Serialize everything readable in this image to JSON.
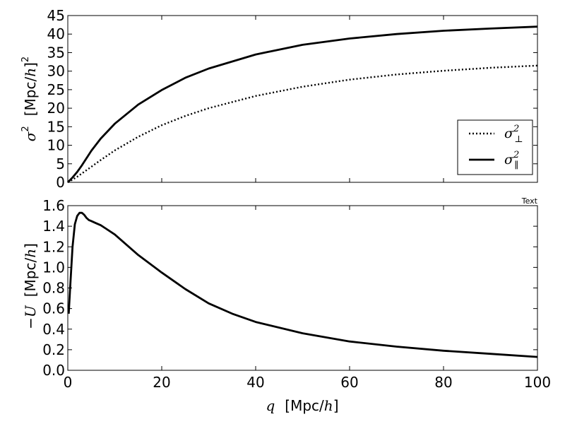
{
  "chart_data": [
    {
      "type": "line",
      "panel": "top",
      "ylabel_symbol": "σ",
      "ylabel_superscript": "2",
      "ylabel_units": "[Mpc/",
      "ylabel_units_h": "h",
      "ylabel_units_close": "]",
      "ylabel_units_superscript": "2",
      "xlim": [
        0,
        100
      ],
      "ylim": [
        0,
        45
      ],
      "yticks": [
        0,
        5,
        10,
        15,
        20,
        25,
        30,
        35,
        40,
        45
      ],
      "show_xticklabels": false,
      "legend_position": "lower-right",
      "series": [
        {
          "name": "σ⊥²",
          "legend_symbol": "σ",
          "legend_sub": "⊥",
          "legend_sup": "2",
          "style": "dotted",
          "x": [
            0,
            1,
            2,
            3,
            5,
            7,
            10,
            15,
            20,
            25,
            30,
            40,
            50,
            60,
            70,
            80,
            90,
            100
          ],
          "y": [
            0,
            0.7,
            1.5,
            2.4,
            4.2,
            6.0,
            8.6,
            12.3,
            15.4,
            17.9,
            20.0,
            23.3,
            25.8,
            27.7,
            29.1,
            30.1,
            30.9,
            31.5
          ]
        },
        {
          "name": "σ∥²",
          "legend_symbol": "σ",
          "legend_sub": "∥",
          "legend_sup": "2",
          "style": "solid",
          "x": [
            0,
            1,
            2,
            3,
            5,
            7,
            10,
            15,
            20,
            25,
            30,
            40,
            50,
            60,
            70,
            80,
            90,
            100
          ],
          "y": [
            0,
            1.3,
            2.8,
            4.6,
            8.5,
            11.8,
            15.8,
            21.0,
            24.9,
            28.2,
            30.7,
            34.5,
            37.1,
            38.8,
            40.0,
            40.9,
            41.5,
            42.0
          ]
        }
      ]
    },
    {
      "type": "line",
      "panel": "bottom",
      "ylabel_prefix": "−",
      "ylabel_symbol": "U",
      "ylabel_units": "[Mpc/",
      "ylabel_units_h": "h",
      "ylabel_units_close": "]",
      "xlabel_symbol": "q",
      "xlabel_units": "[Mpc/",
      "xlabel_units_h": "h",
      "xlabel_units_close": "]",
      "xlim": [
        0,
        100
      ],
      "ylim": [
        0.0,
        1.6
      ],
      "xticks": [
        0,
        20,
        40,
        60,
        80,
        100
      ],
      "yticks": [
        0.0,
        0.2,
        0.4,
        0.6,
        0.8,
        1.0,
        1.2,
        1.4,
        1.6
      ],
      "series": [
        {
          "style": "solid",
          "x": [
            0.2,
            0.5,
            1.0,
            1.5,
            2.0,
            2.5,
            3.0,
            3.5,
            4.0,
            4.5,
            5.0,
            6.0,
            7.0,
            8.0,
            10,
            12,
            15,
            20,
            25,
            30,
            35,
            40,
            50,
            60,
            70,
            80,
            90,
            100
          ],
          "y": [
            0.55,
            0.8,
            1.2,
            1.42,
            1.5,
            1.53,
            1.53,
            1.51,
            1.48,
            1.46,
            1.45,
            1.43,
            1.41,
            1.38,
            1.32,
            1.24,
            1.12,
            0.95,
            0.79,
            0.65,
            0.55,
            0.47,
            0.36,
            0.28,
            0.23,
            0.19,
            0.16,
            0.13
          ]
        }
      ],
      "annotation": "Text"
    }
  ]
}
